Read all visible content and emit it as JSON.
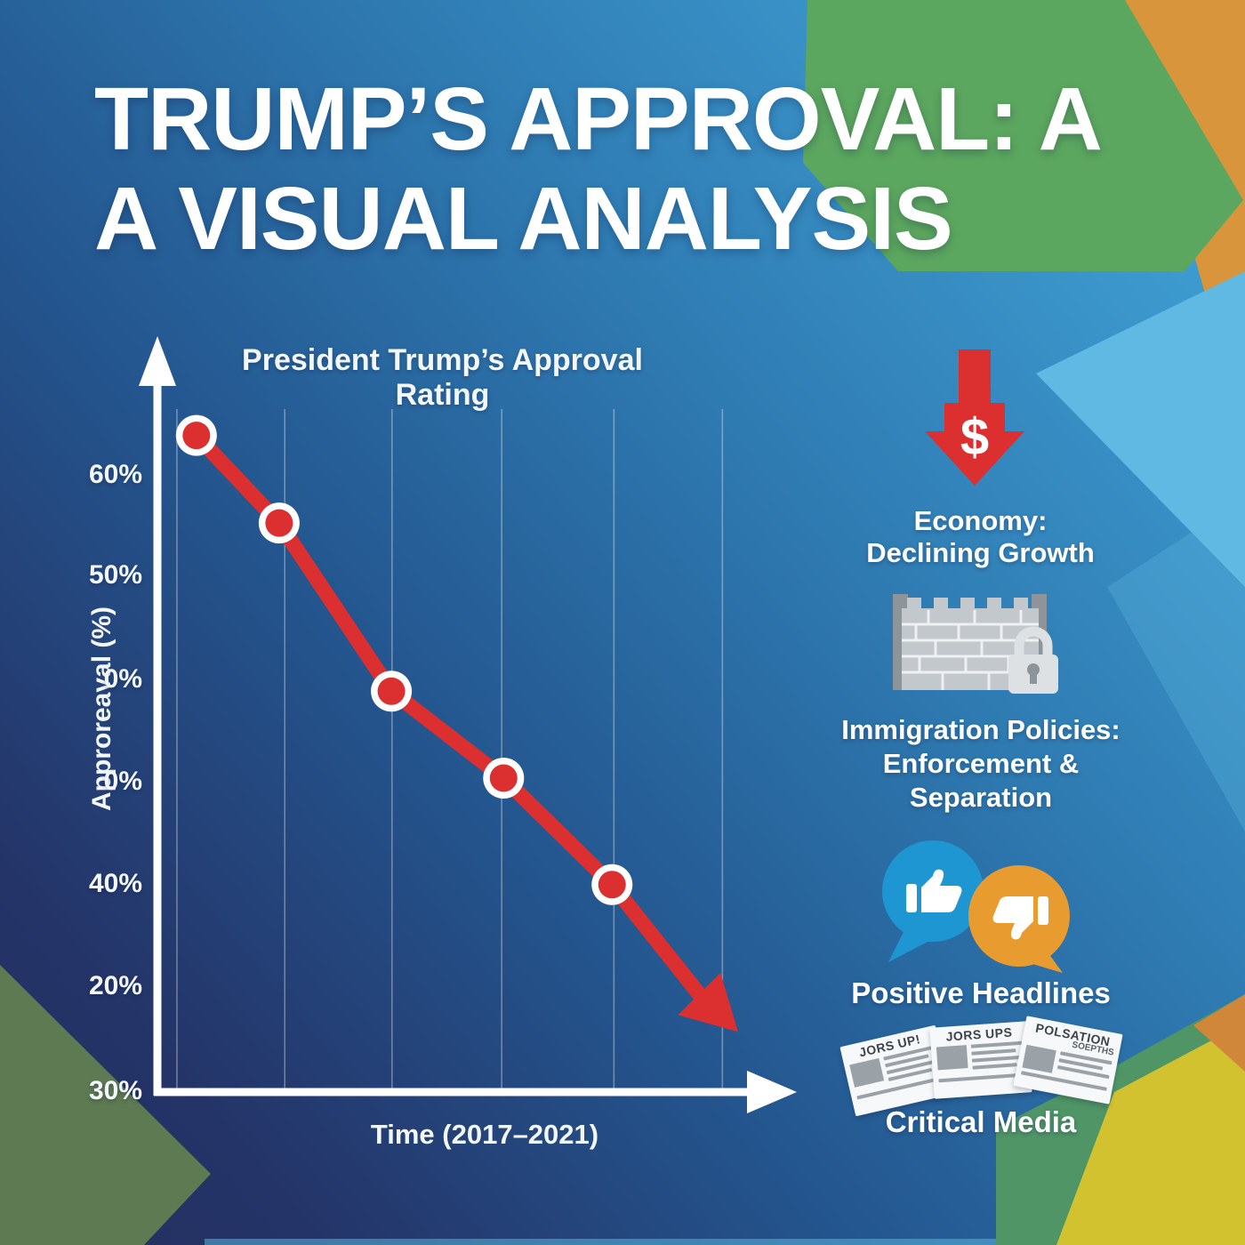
{
  "title": {
    "line1": "TRUMP’S APPROVAL: A",
    "line2": "A VISUAL ANALYSIS"
  },
  "chart": {
    "title": "President Trump’s Approval Rating",
    "xlabel": "Time (2017–2021)",
    "ylabel": "Approreaval (%)"
  },
  "chart_data": {
    "type": "line",
    "title": "President Trump's Approval Rating",
    "xlabel": "Time (2017–2021)",
    "ylabel": "Approreaval (%)",
    "x_range_label": "2017–2021",
    "trend": "declining, ends in downward arrow",
    "approx_values_pct": [
      65,
      56,
      47,
      42,
      36
    ],
    "y_ticks": [
      {
        "label": "60%",
        "ny": 0.12
      },
      {
        "label": "50%",
        "ny": 0.264
      },
      {
        "label": "0%",
        "ny": 0.412
      },
      {
        "label": "0%",
        "ny": 0.558
      },
      {
        "label": "40%",
        "ny": 0.704
      },
      {
        "label": "20%",
        "ny": 0.85
      },
      {
        "label": "30%",
        "ny": 1.0
      }
    ],
    "gridlines_nx": [
      0.034,
      0.206,
      0.377,
      0.552,
      0.731,
      0.904
    ],
    "points_norm": [
      {
        "x": 0.065,
        "y": 0.063
      },
      {
        "x": 0.197,
        "y": 0.188
      },
      {
        "x": 0.376,
        "y": 0.428
      },
      {
        "x": 0.555,
        "y": 0.552
      },
      {
        "x": 0.728,
        "y": 0.704
      }
    ],
    "trend_arrow_norm": {
      "line_end": {
        "x": 0.872,
        "y": 0.866
      },
      "tip": {
        "x": 0.929,
        "y": 0.914
      },
      "wing1": {
        "x": 0.901,
        "y": 0.83
      },
      "wing2": {
        "x": 0.833,
        "y": 0.89
      }
    },
    "line_color": "#dc2f2f",
    "axis_color": "#ffffff",
    "grid_on": true
  },
  "sidebar": {
    "economy": {
      "dollar": "$",
      "line1": "Economy:",
      "line2": "Declining Growth"
    },
    "immigration": {
      "line1": "Immigration Policies:",
      "line2": "Enforcement &",
      "line3": "Separation"
    },
    "media_positive": {
      "label": "Positive Headlines"
    },
    "media_critical": {
      "label": "Critical Media"
    },
    "newspapers": [
      {
        "title": "JORS UP!"
      },
      {
        "title": "JORS UPS"
      },
      {
        "title": "POLSATION",
        "subtitle": "SOEPTHS"
      }
    ]
  },
  "colors": {
    "red": "#dc2f2f",
    "green_top": "#5ca75f",
    "orange_top": "#d9953b",
    "light_wedge": "#5fb9e2",
    "olive_bottom_left": "#5d7a52",
    "green_bottom_right": "#4f9566",
    "yellow_bottom_right": "#d3c22f",
    "bubble_blue": "#1e96d2",
    "bubble_orange": "#e89b2e",
    "wall_gray": "#c2c8cc",
    "background_dark": "#262e5e",
    "background_light": "#44a8da"
  }
}
